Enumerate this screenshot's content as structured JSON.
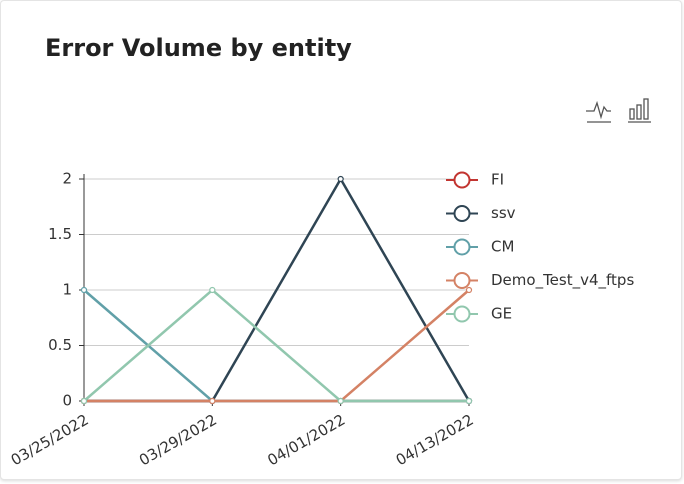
{
  "chart_data": {
    "type": "line",
    "title": "Error Volume by entity",
    "categories": [
      "03/25/2022",
      "03/29/2022",
      "04/01/2022",
      "04/13/2022"
    ],
    "series": [
      {
        "name": "FI",
        "color": "#c23531",
        "values": [
          0,
          0,
          0,
          0
        ]
      },
      {
        "name": "ssv",
        "color": "#2f4554",
        "values": [
          0,
          0,
          2,
          0
        ]
      },
      {
        "name": "CM",
        "color": "#61a0a8",
        "values": [
          1,
          0,
          0,
          0
        ]
      },
      {
        "name": "Demo_Test_v4_ftps",
        "color": "#d48265",
        "values": [
          0,
          0,
          0,
          1
        ]
      },
      {
        "name": "GE",
        "color": "#91c7ae",
        "values": [
          0,
          1,
          0,
          0
        ]
      }
    ],
    "ylim": [
      0,
      2
    ],
    "yticks": [
      0,
      0.5,
      1,
      1.5,
      2
    ],
    "grid": true,
    "legend": "right"
  }
}
